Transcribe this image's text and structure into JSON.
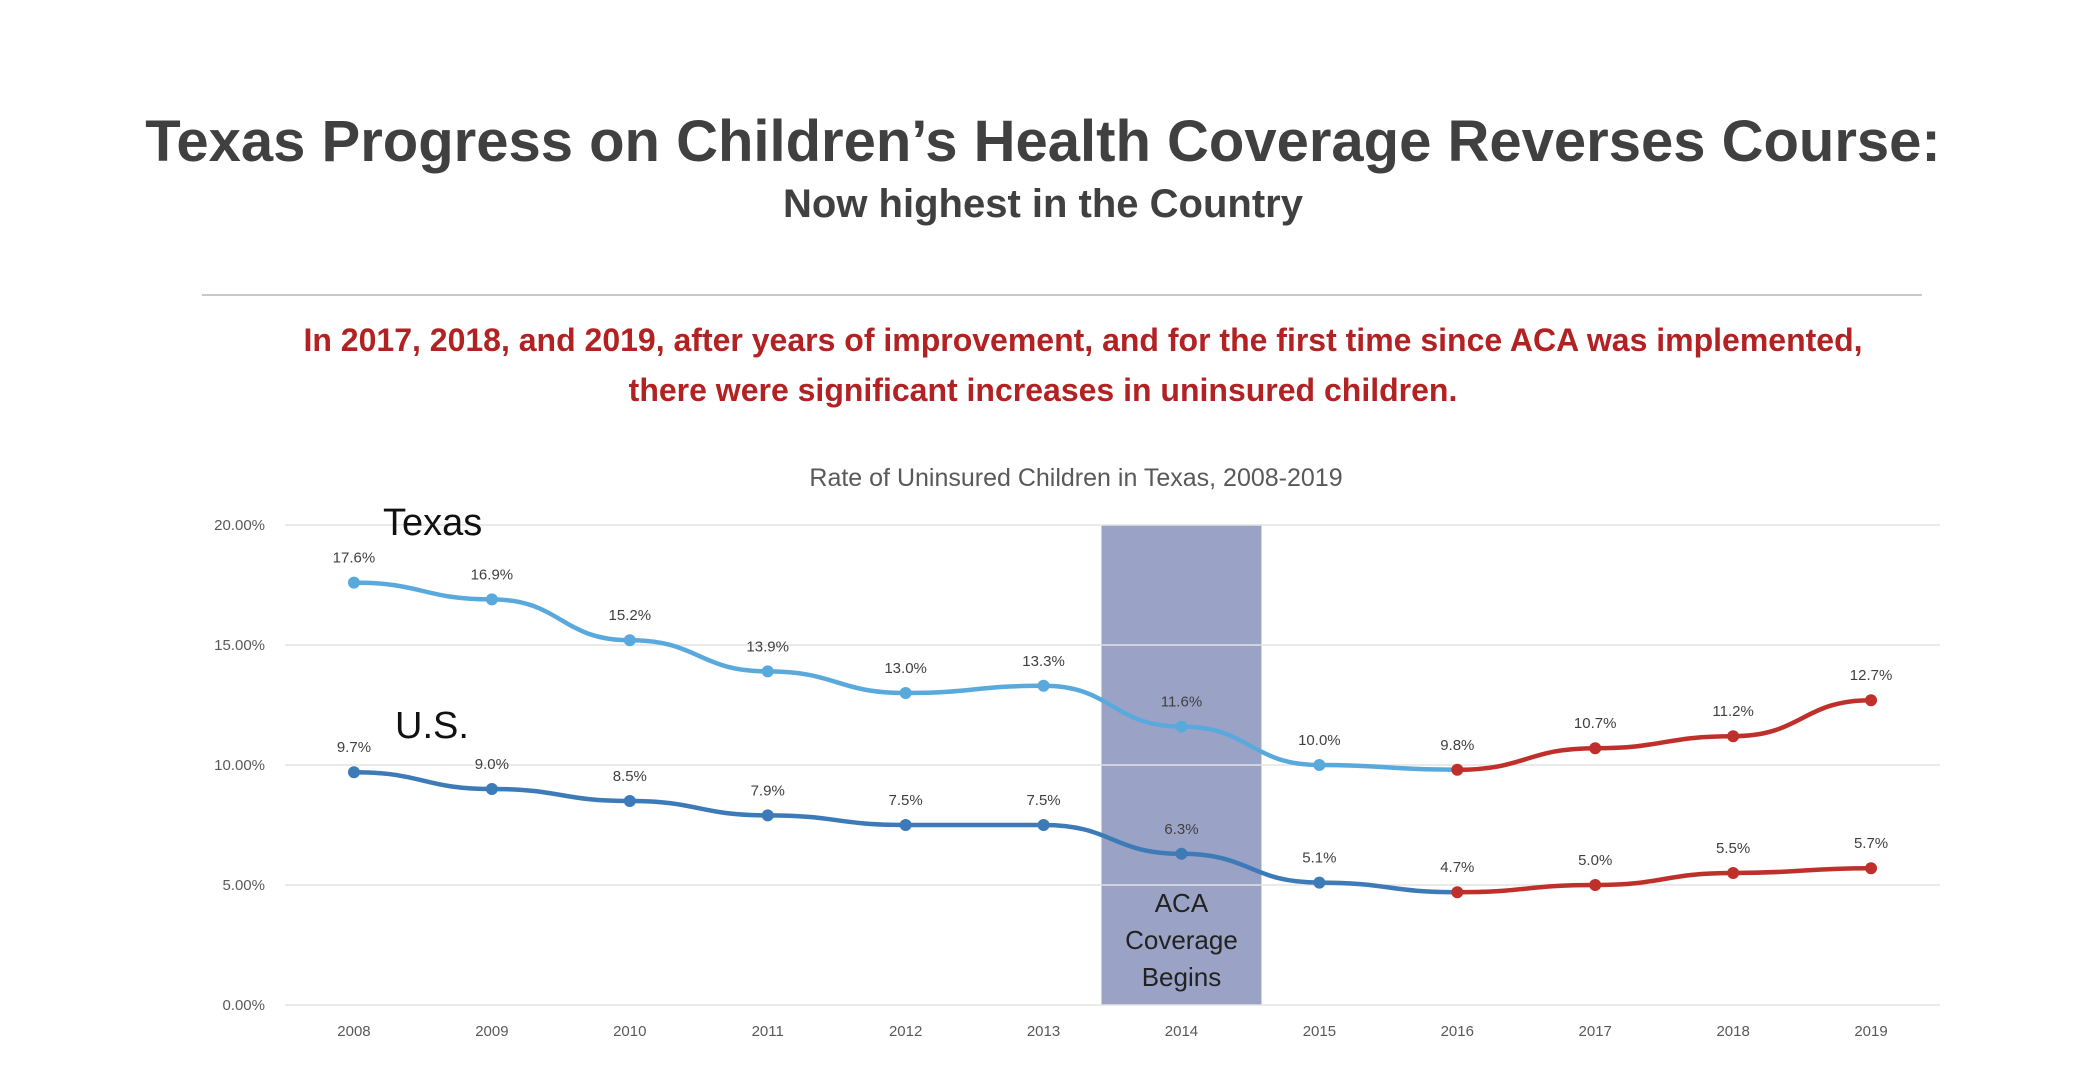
{
  "slide": {
    "title": "Texas Progress on Children’s Health Coverage Reverses Course:",
    "subtitle": "Now highest in the Country",
    "callout_line1": "In 2017, 2018, and 2019, after years of improvement, and for the first time since ACA was implemented,",
    "callout_line2": "there were significant increases in uninsured children."
  },
  "chart_data": {
    "type": "line",
    "title": "Rate of Uninsured Children in Texas, 2008-2019",
    "xlabel": "",
    "ylabel": "",
    "categories": [
      "2008",
      "2009",
      "2010",
      "2011",
      "2012",
      "2013",
      "2014",
      "2015",
      "2016",
      "2017",
      "2018",
      "2019"
    ],
    "ylim": [
      0,
      20
    ],
    "y_ticks": [
      0,
      5,
      10,
      15,
      20
    ],
    "y_tick_labels": [
      "0.00%",
      "5.00%",
      "10.00%",
      "15.00%",
      "20.00%"
    ],
    "grid": true,
    "series": [
      {
        "name": "Texas",
        "values": [
          17.6,
          16.9,
          15.2,
          13.9,
          13.0,
          13.3,
          11.6,
          10.0,
          9.8,
          10.7,
          11.2,
          12.7
        ],
        "data_labels": [
          "17.6%",
          "16.9%",
          "15.2%",
          "13.9%",
          "13.0%",
          "13.3%",
          "11.6%",
          "10.0%",
          "9.8%",
          "10.7%",
          "11.2%",
          "12.7%"
        ],
        "color": "#5aa9dc",
        "increase_color": "#c0302a",
        "increase_from_index": 8
      },
      {
        "name": "U.S.",
        "values": [
          9.7,
          9.0,
          8.5,
          7.9,
          7.5,
          7.5,
          6.3,
          5.1,
          4.7,
          5.0,
          5.5,
          5.7
        ],
        "data_labels": [
          "9.7%",
          "9.0%",
          "8.5%",
          "7.9%",
          "7.5%",
          "7.5%",
          "6.3%",
          "5.1%",
          "4.7%",
          "5.0%",
          "5.5%",
          "5.7%"
        ],
        "color": "#3d7ab8",
        "increase_color": "#c0302a",
        "increase_from_index": 8
      }
    ],
    "annotation": {
      "category": "2014",
      "lines": [
        "ACA",
        "Coverage",
        "Begins"
      ],
      "color": "#9aa3c6"
    }
  }
}
